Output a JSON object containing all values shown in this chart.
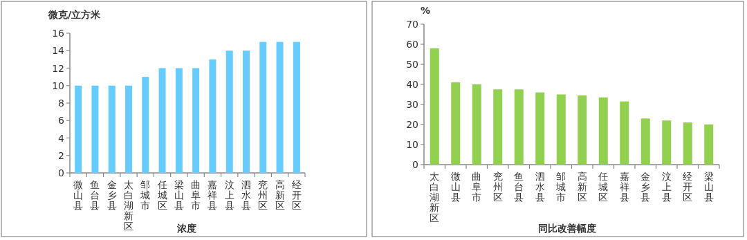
{
  "chart_data": [
    {
      "type": "bar",
      "xlabel": "浓度",
      "ylabel": "微克/立方米",
      "categories": [
        "微山县",
        "鱼台县",
        "金乡县",
        "太白湖新区",
        "邹城市",
        "任城区",
        "梁山县",
        "曲阜市",
        "嘉祥县",
        "汶上县",
        "泗水县",
        "兖州区",
        "高新区",
        "经开区"
      ],
      "values": [
        10,
        10,
        10,
        10,
        11,
        12,
        12,
        12,
        13,
        14,
        14,
        15,
        15,
        15
      ],
      "color": "#66ccff",
      "ylim": [
        0,
        16
      ],
      "yticks": [
        0,
        2,
        4,
        6,
        8,
        10,
        12,
        14,
        16
      ]
    },
    {
      "type": "bar",
      "xlabel": "同比改善幅度",
      "ylabel": "%",
      "categories": [
        "太白湖新区",
        "微山县",
        "曲阜市",
        "兖州区",
        "鱼台县",
        "泗水县",
        "邹城市",
        "高新区",
        "任城区",
        "嘉祥县",
        "金乡县",
        "汶上县",
        "经开区",
        "梁山县"
      ],
      "values": [
        58,
        41,
        40,
        37.5,
        37.5,
        36,
        35,
        34.5,
        33.5,
        31.5,
        23,
        22,
        21,
        20
      ],
      "color": "#92d050",
      "ylim": [
        0,
        70
      ],
      "yticks": [
        0,
        10,
        20,
        30,
        40,
        50,
        60,
        70
      ]
    }
  ]
}
